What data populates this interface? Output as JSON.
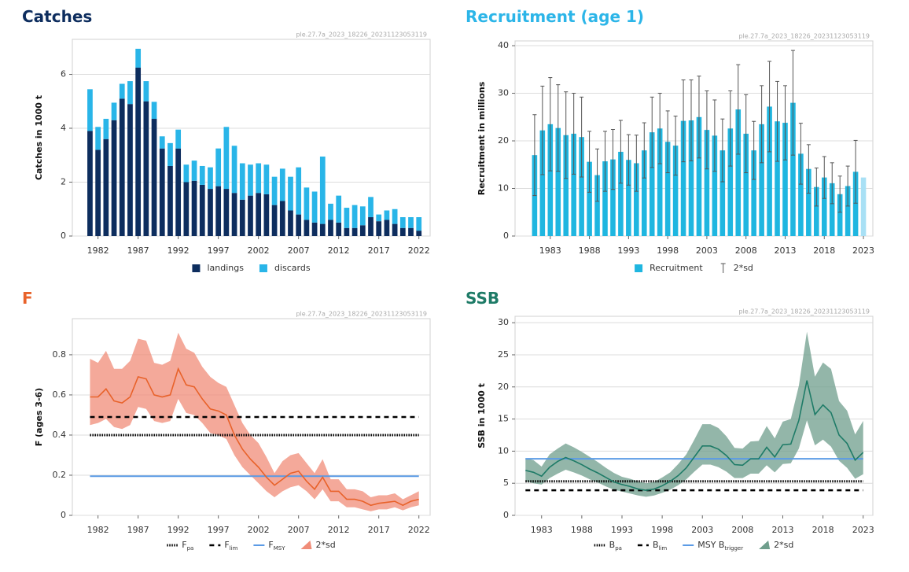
{
  "chart_data": [
    {
      "type": "bar_stacked",
      "title": "Catches",
      "title_color": "#0d2d5e",
      "source": "ple.27.7a_2023_18226_20231123053119",
      "ylabel": "Catches in 1000 t",
      "x": [
        1981,
        1982,
        1983,
        1984,
        1985,
        1986,
        1987,
        1988,
        1989,
        1990,
        1991,
        1992,
        1993,
        1994,
        1995,
        1996,
        1997,
        1998,
        1999,
        2000,
        2001,
        2002,
        2003,
        2004,
        2005,
        2006,
        2007,
        2008,
        2009,
        2010,
        2011,
        2012,
        2013,
        2014,
        2015,
        2016,
        2017,
        2018,
        2019,
        2020,
        2021,
        2022
      ],
      "series": [
        {
          "name": "landings",
          "color": "#0d2d5e",
          "values": [
            3.9,
            3.2,
            3.6,
            4.3,
            5.1,
            4.9,
            6.25,
            5.0,
            4.35,
            3.25,
            2.6,
            3.25,
            2.0,
            2.05,
            1.9,
            1.75,
            1.85,
            1.75,
            1.6,
            1.35,
            1.5,
            1.6,
            1.55,
            1.15,
            1.3,
            0.95,
            0.8,
            0.6,
            0.5,
            0.45,
            0.6,
            0.5,
            0.3,
            0.3,
            0.4,
            0.7,
            0.55,
            0.6,
            0.45,
            0.3,
            0.3,
            0.2
          ]
        },
        {
          "name": "discards",
          "color": "#29b5e8",
          "values": [
            1.55,
            0.85,
            0.75,
            0.65,
            0.55,
            0.85,
            0.7,
            0.75,
            0.63,
            0.45,
            0.85,
            0.7,
            0.65,
            0.75,
            0.7,
            0.8,
            1.4,
            2.3,
            1.75,
            1.35,
            1.15,
            1.1,
            1.1,
            1.05,
            1.2,
            1.25,
            1.75,
            1.2,
            1.15,
            2.5,
            0.6,
            1.0,
            0.75,
            0.85,
            0.7,
            0.75,
            0.25,
            0.35,
            0.55,
            0.4,
            0.4,
            0.5
          ]
        }
      ],
      "xlim": [
        1978.8,
        2023.4
      ],
      "xticks": [
        1982,
        1987,
        1992,
        1997,
        2002,
        2007,
        2012,
        2017,
        2022
      ],
      "ylim": [
        0,
        7.3
      ],
      "yticks": [
        0,
        2,
        4,
        6
      ],
      "grid": true
    },
    {
      "type": "bar_error",
      "title": "Recruitment (age 1)",
      "title_color": "#2cb5e8",
      "source": "ple.27.7a_2023_18226_20231123053119",
      "ylabel": "Recruitment in millions",
      "x": [
        1981,
        1982,
        1983,
        1984,
        1985,
        1986,
        1987,
        1988,
        1989,
        1990,
        1991,
        1992,
        1993,
        1994,
        1995,
        1996,
        1997,
        1998,
        1999,
        2000,
        2001,
        2002,
        2003,
        2004,
        2005,
        2006,
        2007,
        2008,
        2009,
        2010,
        2011,
        2012,
        2013,
        2014,
        2015,
        2016,
        2017,
        2018,
        2019,
        2020,
        2021,
        2022,
        2023
      ],
      "series": [
        {
          "name": "Recruitment",
          "color": "#1fb6e0",
          "values": [
            17,
            22.2,
            23.5,
            22.7,
            21.2,
            21.5,
            20.8,
            15.6,
            12.8,
            15.7,
            16.1,
            17.7,
            16,
            15.3,
            18,
            21.8,
            22.6,
            19.8,
            19,
            24.2,
            24.3,
            25,
            22.3,
            21.1,
            18,
            22.6,
            26.6,
            21.5,
            18,
            23.5,
            27.2,
            24.1,
            23.8,
            28,
            17.3,
            14.1,
            10.3,
            12.3,
            11.1,
            8.8,
            10.5,
            13.5,
            12.3
          ],
          "colors": [
            "#1fb6e0",
            "#1fb6e0",
            "#1fb6e0",
            "#1fb6e0",
            "#1fb6e0",
            "#1fb6e0",
            "#1fb6e0",
            "#1fb6e0",
            "#1fb6e0",
            "#1fb6e0",
            "#1fb6e0",
            "#1fb6e0",
            "#1fb6e0",
            "#1fb6e0",
            "#1fb6e0",
            "#1fb6e0",
            "#1fb6e0",
            "#1fb6e0",
            "#1fb6e0",
            "#1fb6e0",
            "#1fb6e0",
            "#1fb6e0",
            "#1fb6e0",
            "#1fb6e0",
            "#1fb6e0",
            "#1fb6e0",
            "#1fb6e0",
            "#1fb6e0",
            "#1fb6e0",
            "#1fb6e0",
            "#1fb6e0",
            "#1fb6e0",
            "#1fb6e0",
            "#1fb6e0",
            "#1fb6e0",
            "#1fb6e0",
            "#1fb6e0",
            "#1fb6e0",
            "#1fb6e0",
            "#1fb6e0",
            "#1fb6e0",
            "#1fb6e0",
            "#a8e0f5"
          ]
        }
      ],
      "error": {
        "name": "2*sd",
        "color": "#555555",
        "values": [
          8.5,
          9.3,
          9.8,
          9.1,
          9.1,
          8.5,
          8.4,
          6.4,
          5.5,
          6.3,
          6.3,
          6.6,
          5.3,
          5.9,
          5.8,
          7.4,
          7.4,
          6.5,
          6.2,
          8.6,
          8.5,
          8.6,
          8.2,
          7.5,
          6.6,
          7.9,
          9.4,
          8.2,
          6.1,
          8.1,
          9.5,
          8.4,
          7.8,
          11,
          6.4,
          5.1,
          4,
          4.4,
          4.3,
          3.8,
          4.2,
          6.6,
          null
        ]
      },
      "xlim": [
        1978.5,
        2024.2
      ],
      "xticks": [
        1983,
        1988,
        1993,
        1998,
        2003,
        2008,
        2013,
        2018,
        2023
      ],
      "ylim": [
        0,
        41
      ],
      "yticks": [
        0,
        10,
        20,
        30,
        40
      ],
      "grid": true
    },
    {
      "type": "line_band",
      "title": "F",
      "title_color": "#e8622a",
      "source": "ple.27.7a_2023_18226_20231123053119",
      "ylabel": "F (ages 3-6)",
      "x": [
        1981,
        1982,
        1983,
        1984,
        1985,
        1986,
        1987,
        1988,
        1989,
        1990,
        1991,
        1992,
        1993,
        1994,
        1995,
        1996,
        1997,
        1998,
        1999,
        2000,
        2001,
        2002,
        2003,
        2004,
        2005,
        2006,
        2007,
        2008,
        2009,
        2010,
        2011,
        2012,
        2013,
        2014,
        2015,
        2016,
        2017,
        2018,
        2019,
        2020,
        2021,
        2022
      ],
      "series": [
        {
          "color": "#e8622a",
          "values": [
            0.59,
            0.59,
            0.63,
            0.57,
            0.56,
            0.59,
            0.69,
            0.68,
            0.6,
            0.59,
            0.6,
            0.73,
            0.65,
            0.64,
            0.58,
            0.53,
            0.52,
            0.5,
            0.4,
            0.33,
            0.28,
            0.24,
            0.19,
            0.15,
            0.18,
            0.21,
            0.22,
            0.17,
            0.13,
            0.19,
            0.12,
            0.12,
            0.08,
            0.08,
            0.07,
            0.05,
            0.06,
            0.065,
            0.07,
            0.05,
            0.07,
            0.08
          ],
          "upper": [
            0.78,
            0.76,
            0.82,
            0.73,
            0.73,
            0.77,
            0.88,
            0.87,
            0.76,
            0.75,
            0.77,
            0.91,
            0.83,
            0.81,
            0.74,
            0.69,
            0.66,
            0.64,
            0.55,
            0.46,
            0.4,
            0.36,
            0.29,
            0.21,
            0.27,
            0.3,
            0.31,
            0.26,
            0.21,
            0.28,
            0.18,
            0.18,
            0.13,
            0.13,
            0.12,
            0.09,
            0.1,
            0.1,
            0.11,
            0.08,
            0.1,
            0.12
          ],
          "lower": [
            0.45,
            0.46,
            0.48,
            0.44,
            0.43,
            0.45,
            0.54,
            0.53,
            0.47,
            0.46,
            0.47,
            0.58,
            0.51,
            0.5,
            0.46,
            0.41,
            0.4,
            0.38,
            0.3,
            0.24,
            0.2,
            0.16,
            0.12,
            0.09,
            0.12,
            0.14,
            0.15,
            0.12,
            0.08,
            0.13,
            0.07,
            0.07,
            0.04,
            0.04,
            0.03,
            0.02,
            0.03,
            0.03,
            0.04,
            0.025,
            0.04,
            0.05
          ]
        }
      ],
      "band_name": "2*sd",
      "band_color": "#f08c78",
      "ref_lines": [
        {
          "name": "F",
          "sub": "pa",
          "value": 0.4,
          "style": "dotted",
          "color": "#000000"
        },
        {
          "name": "F",
          "sub": "lim",
          "value": 0.49,
          "style": "dashed",
          "color": "#000000"
        },
        {
          "name": "F",
          "sub": "MSY",
          "value": 0.195,
          "style": "solid",
          "color": "#5b9be6"
        }
      ],
      "xlim": [
        1978.8,
        2023.4
      ],
      "xticks": [
        1982,
        1987,
        1992,
        1997,
        2002,
        2007,
        2012,
        2017,
        2022
      ],
      "ylim": [
        0,
        0.98
      ],
      "yticks": [
        0,
        0.2,
        0.4,
        0.6,
        0.8
      ],
      "grid": true
    },
    {
      "type": "line_band",
      "title": "SSB",
      "title_color": "#1e7b67",
      "source": "ple.27.7a_2023_18226_20231123053119",
      "ylabel": "SSB in 1000 t",
      "x": [
        1981,
        1982,
        1983,
        1984,
        1985,
        1986,
        1987,
        1988,
        1989,
        1990,
        1991,
        1992,
        1993,
        1994,
        1995,
        1996,
        1997,
        1998,
        1999,
        2000,
        2001,
        2002,
        2003,
        2004,
        2005,
        2006,
        2007,
        2008,
        2009,
        2010,
        2011,
        2012,
        2013,
        2014,
        2015,
        2016,
        2017,
        2018,
        2019,
        2020,
        2021,
        2022,
        2023
      ],
      "series": [
        {
          "color": "#1e7b67",
          "values": [
            7,
            6.7,
            6.1,
            7.5,
            8.4,
            9,
            8.5,
            7.9,
            7.2,
            6.6,
            5.9,
            5.2,
            4.8,
            4.5,
            4.1,
            3.9,
            4.1,
            4.6,
            5.3,
            6.2,
            7.4,
            9.1,
            10.8,
            10.8,
            10.3,
            9.3,
            7.9,
            7.8,
            8.8,
            8.8,
            10.6,
            9.1,
            11,
            11.1,
            14.8,
            21,
            15.7,
            17.2,
            16,
            12.5,
            11.2,
            8.6,
            9.8
          ],
          "upper": [
            8.9,
            8.6,
            7.6,
            9.5,
            10.4,
            11.2,
            10.6,
            9.9,
            9.1,
            8.3,
            7.4,
            6.6,
            6,
            5.7,
            5.3,
            5,
            5.2,
            5.9,
            6.7,
            8,
            9.5,
            11.8,
            14.2,
            14.2,
            13.6,
            12.3,
            10.5,
            10.4,
            11.5,
            11.6,
            13.9,
            12,
            14.6,
            15,
            20.2,
            28.6,
            21.6,
            23.8,
            22.8,
            17.8,
            16.3,
            12.6,
            14.7
          ],
          "lower": [
            5.3,
            5,
            4.8,
            5.8,
            6.5,
            7.1,
            6.7,
            6.2,
            5.6,
            5.1,
            4.5,
            4,
            3.7,
            3.4,
            3.1,
            2.9,
            3.1,
            3.5,
            4,
            4.7,
            5.6,
            6.8,
            7.9,
            7.9,
            7.5,
            6.8,
            5.8,
            5.8,
            6.5,
            6.5,
            7.8,
            6.7,
            8,
            8.1,
            10.4,
            14.8,
            10.9,
            11.8,
            10.7,
            8.5,
            7.4,
            5.7,
            6.4
          ]
        }
      ],
      "band_name": "2*sd",
      "band_color": "#6f9e8c",
      "ref_lines": [
        {
          "name": "B",
          "sub": "pa",
          "value": 5.3,
          "style": "dotted",
          "color": "#000000"
        },
        {
          "name": "B",
          "sub": "lim",
          "value": 3.9,
          "style": "dashed",
          "color": "#000000"
        },
        {
          "name": "MSY B",
          "sub": "trigger",
          "value": 8.8,
          "style": "solid",
          "color": "#5b9be6"
        }
      ],
      "xlim": [
        1979.7,
        2024.2
      ],
      "xticks": [
        1983,
        1988,
        1993,
        1998,
        2003,
        2008,
        2013,
        2018,
        2023
      ],
      "ylim": [
        0,
        31
      ],
      "yticks": [
        0,
        5,
        10,
        15,
        20,
        25,
        30
      ],
      "grid": true
    }
  ]
}
